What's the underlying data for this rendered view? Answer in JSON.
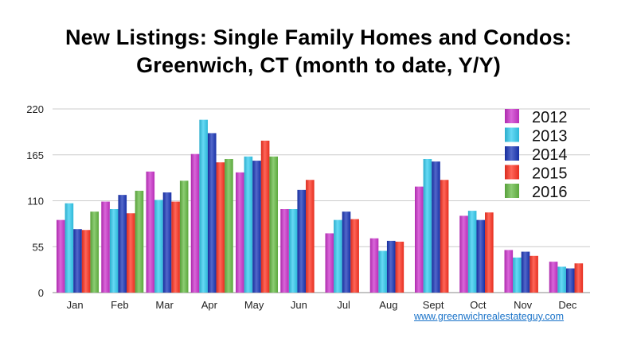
{
  "chart_data": {
    "type": "bar",
    "title_lines": [
      "New Listings: Single Family Homes and Condos:",
      "Greenwich, CT (month to date, Y/Y)"
    ],
    "categories": [
      "Jan",
      "Feb",
      "Mar",
      "Apr",
      "May",
      "Jun",
      "Jul",
      "Aug",
      "Sept",
      "Oct",
      "Nov",
      "Dec"
    ],
    "yticks": [
      "0",
      "55",
      "110",
      "165",
      "220"
    ],
    "ylim": [
      0,
      220
    ],
    "grid": true,
    "legend_position": "top-right",
    "series": [
      {
        "name": "2012",
        "color": "#cc33cc",
        "values": [
          87,
          109,
          145,
          166,
          144,
          100,
          71,
          65,
          127,
          92,
          51,
          37
        ]
      },
      {
        "name": "2013",
        "color": "#33ccf0",
        "values": [
          107,
          100,
          111,
          207,
          163,
          100,
          87,
          50,
          160,
          98,
          42,
          31
        ]
      },
      {
        "name": "2014",
        "color": "#1a35b8",
        "values": [
          76,
          117,
          120,
          191,
          158,
          123,
          97,
          62,
          157,
          87,
          49,
          29
        ]
      },
      {
        "name": "2015",
        "color": "#ff3322",
        "values": [
          75,
          95,
          109,
          156,
          182,
          135,
          88,
          61,
          135,
          96,
          44,
          35
        ]
      },
      {
        "name": "2016",
        "color": "#66bb44",
        "values": [
          97,
          122,
          134,
          160,
          163,
          null,
          null,
          null,
          null,
          null,
          null,
          null
        ]
      }
    ]
  },
  "source_link": "www.greenwichrealestateguy.com"
}
